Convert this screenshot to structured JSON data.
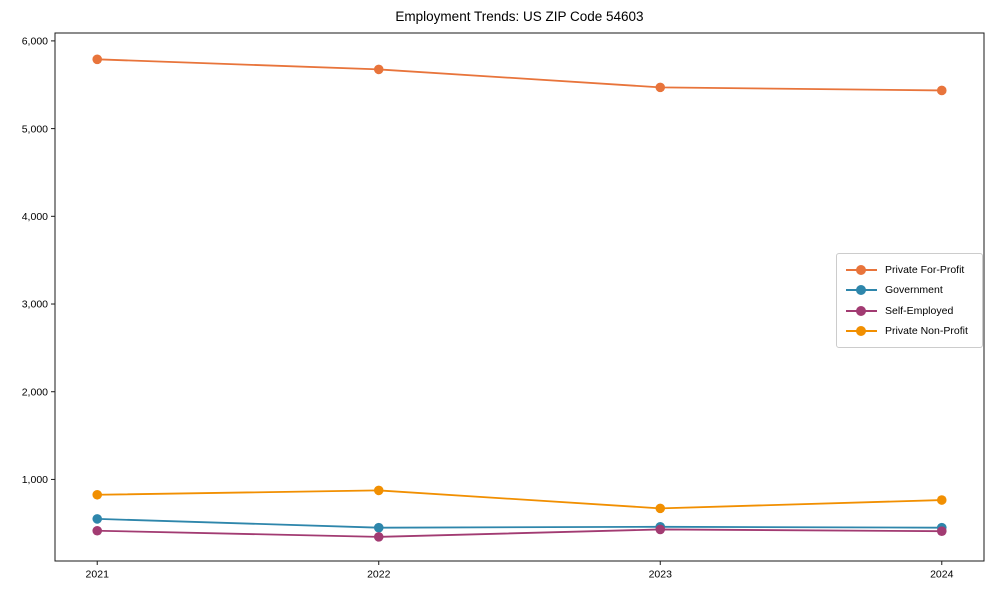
{
  "figure": {
    "background": "#ffffff",
    "title": "Employment Trends: US ZIP Code 54603"
  },
  "chart_data": {
    "type": "line",
    "title": "Employment Trends: US ZIP Code 54603",
    "xlabel": "",
    "ylabel": "",
    "x": [
      2021,
      2022,
      2023,
      2024
    ],
    "x_tick_labels": [
      "2021",
      "2022",
      "2023",
      "2024"
    ],
    "y_ticks": [
      1000,
      2000,
      3000,
      4000,
      5000,
      6000
    ],
    "y_tick_labels": [
      "1,000",
      "2,000",
      "3,000",
      "4,000",
      "5,000",
      "6,000"
    ],
    "xlim": [
      2020.85,
      2024.15
    ],
    "ylim": [
      70,
      6090
    ],
    "grid": false,
    "legend_position": "center-right",
    "legend_border_color": "#cccccc",
    "axis_color": "#1a1a1a",
    "series": [
      {
        "name": "Private For-Profit",
        "color": "#E8743B",
        "values": [
          5790,
          5675,
          5470,
          5435
        ]
      },
      {
        "name": "Government",
        "color": "#2E86AB",
        "values": [
          550,
          450,
          460,
          450
        ]
      },
      {
        "name": "Self-Employed",
        "color": "#A23B72",
        "values": [
          415,
          345,
          430,
          410
        ]
      },
      {
        "name": "Private Non-Profit",
        "color": "#F18F01",
        "values": [
          825,
          875,
          670,
          765
        ]
      }
    ]
  }
}
